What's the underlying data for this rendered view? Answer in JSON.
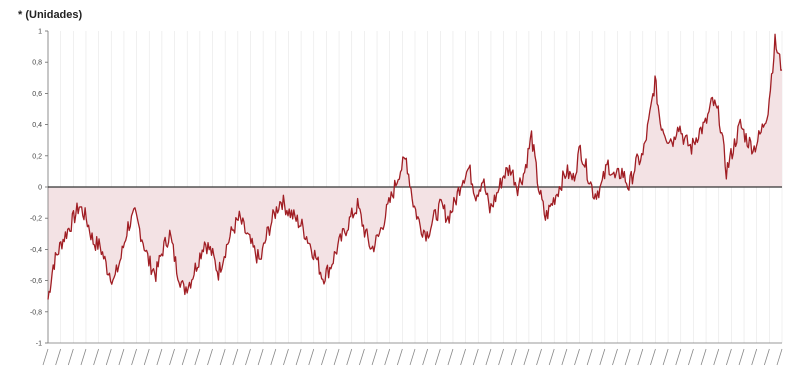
{
  "chart_data": {
    "type": "area",
    "ylabel": "* (Unidades)",
    "ylim": [
      -1,
      1
    ],
    "y_ticks": [
      "1",
      "0,8",
      "0,6",
      "0,4",
      "0,2",
      "0",
      "-0,2",
      "-0,4",
      "-0,6",
      "-0,8",
      "-1"
    ],
    "grid": true,
    "zero_line": true,
    "colors": {
      "line": "#a01e24",
      "fill": "#f3e2e4",
      "zero": "#333333",
      "grid": "#e6e6e6"
    },
    "n_points": 360,
    "anchors": [
      [
        0,
        -0.72
      ],
      [
        3,
        -0.5
      ],
      [
        8,
        -0.35
      ],
      [
        14,
        -0.22
      ],
      [
        18,
        -0.12
      ],
      [
        22,
        -0.2
      ],
      [
        26,
        -0.35
      ],
      [
        30,
        -0.38
      ],
      [
        34,
        -0.52
      ],
      [
        38,
        -0.6
      ],
      [
        42,
        -0.45
      ],
      [
        46,
        -0.25
      ],
      [
        50,
        -0.18
      ],
      [
        54,
        -0.32
      ],
      [
        58,
        -0.48
      ],
      [
        62,
        -0.56
      ],
      [
        66,
        -0.4
      ],
      [
        70,
        -0.3
      ],
      [
        74,
        -0.52
      ],
      [
        78,
        -0.66
      ],
      [
        82,
        -0.6
      ],
      [
        86,
        -0.48
      ],
      [
        90,
        -0.35
      ],
      [
        94,
        -0.42
      ],
      [
        98,
        -0.55
      ],
      [
        102,
        -0.4
      ],
      [
        106,
        -0.28
      ],
      [
        110,
        -0.2
      ],
      [
        114,
        -0.3
      ],
      [
        118,
        -0.4
      ],
      [
        122,
        -0.48
      ],
      [
        126,
        -0.3
      ],
      [
        130,
        -0.18
      ],
      [
        134,
        -0.08
      ],
      [
        138,
        -0.15
      ],
      [
        142,
        -0.2
      ],
      [
        146,
        -0.25
      ],
      [
        150,
        -0.35
      ],
      [
        154,
        -0.45
      ],
      [
        158,
        -0.58
      ],
      [
        162,
        -0.52
      ],
      [
        166,
        -0.4
      ],
      [
        170,
        -0.3
      ],
      [
        174,
        -0.2
      ],
      [
        178,
        -0.12
      ],
      [
        182,
        -0.28
      ],
      [
        186,
        -0.4
      ],
      [
        190,
        -0.32
      ],
      [
        194,
        -0.18
      ],
      [
        198,
        -0.05
      ],
      [
        202,
        0.1
      ],
      [
        206,
        0.18
      ],
      [
        210,
        -0.1
      ],
      [
        214,
        -0.25
      ],
      [
        218,
        -0.3
      ],
      [
        222,
        -0.2
      ],
      [
        226,
        -0.12
      ],
      [
        230,
        -0.2
      ],
      [
        234,
        -0.1
      ],
      [
        238,
        0.05
      ],
      [
        242,
        0.12
      ],
      [
        246,
        -0.05
      ],
      [
        250,
        0.05
      ],
      [
        254,
        -0.15
      ],
      [
        258,
        -0.05
      ],
      [
        262,
        0.08
      ],
      [
        266,
        0.12
      ],
      [
        270,
        0.0
      ],
      [
        274,
        0.1
      ],
      [
        278,
        0.33
      ],
      [
        282,
        0.0
      ],
      [
        286,
        -0.2
      ],
      [
        290,
        -0.1
      ],
      [
        294,
        0.0
      ],
      [
        298,
        0.1
      ],
      [
        302,
        0.05
      ],
      [
        306,
        0.25
      ],
      [
        310,
        0.1
      ],
      [
        314,
        -0.05
      ],
      [
        318,
        0.0
      ],
      [
        322,
        0.15
      ],
      [
        326,
        0.05
      ],
      [
        330,
        0.1
      ],
      [
        334,
        0.0
      ],
      [
        338,
        0.15
      ],
      [
        342,
        0.2
      ],
      [
        346,
        0.45
      ],
      [
        349,
        0.68
      ],
      [
        352,
        0.42
      ],
      [
        356,
        0.32
      ],
      [
        360,
        0.3
      ]
    ],
    "extra_anchors": [
      [
        362,
        0.42
      ],
      [
        366,
        0.3
      ],
      [
        370,
        0.25
      ],
      [
        374,
        0.35
      ],
      [
        378,
        0.4
      ],
      [
        382,
        0.55
      ],
      [
        386,
        0.45
      ],
      [
        390,
        0.1
      ],
      [
        394,
        0.25
      ],
      [
        398,
        0.4
      ],
      [
        402,
        0.3
      ],
      [
        406,
        0.25
      ],
      [
        410,
        0.35
      ],
      [
        414,
        0.5
      ],
      [
        418,
        0.93
      ],
      [
        422,
        0.75
      ]
    ]
  }
}
